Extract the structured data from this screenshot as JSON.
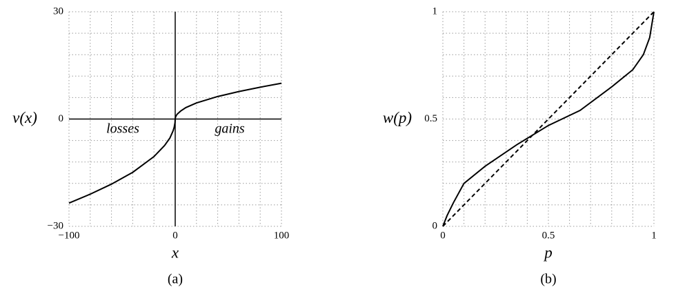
{
  "chart_data": [
    {
      "type": "line",
      "caption": "(a)",
      "xlabel": "x",
      "ylabel": "v(x)",
      "annotations": [
        "losses",
        "gains"
      ],
      "xlim": [
        -100,
        100
      ],
      "ylim": [
        -30,
        30
      ],
      "xticks": [
        {
          "value": -100,
          "label": "−100"
        },
        0,
        100
      ],
      "yticks": [
        {
          "value": -30,
          "label": "−30"
        },
        0,
        30
      ],
      "xgrid": [
        -100,
        -80,
        -60,
        -40,
        -20,
        0,
        20,
        40,
        60,
        80,
        100
      ],
      "ygrid": [
        -30,
        -24,
        -18,
        -12,
        -6,
        0,
        6,
        12,
        18,
        24,
        30
      ],
      "zero_axes": true,
      "x": [
        -100,
        -80,
        -60,
        -40,
        -20,
        -10,
        -5,
        -2,
        -1,
        -0.2,
        0,
        0.2,
        1,
        2,
        5,
        10,
        20,
        40,
        60,
        80,
        100
      ],
      "series": [
        {
          "color": "#000000",
          "dash": "solid",
          "values": [
            -23.5,
            -21.0,
            -18.2,
            -14.9,
            -10.5,
            -7.4,
            -5.3,
            -3.3,
            -2.35,
            -1.05,
            0,
            0.45,
            1.0,
            1.4,
            2.2,
            3.2,
            4.5,
            6.3,
            7.7,
            8.9,
            10.0
          ]
        }
      ]
    },
    {
      "type": "line",
      "caption": "(b)",
      "xlabel": "p",
      "ylabel": "w(p)",
      "xlim": [
        0,
        1
      ],
      "ylim": [
        0,
        1
      ],
      "xticks": [
        0,
        0.5,
        1
      ],
      "yticks": [
        0,
        0.5,
        1
      ],
      "xgrid": [
        0,
        0.1,
        0.2,
        0.3,
        0.4,
        0.5,
        0.6,
        0.7,
        0.8,
        0.9,
        1
      ],
      "ygrid": [
        0,
        0.1,
        0.2,
        0.3,
        0.4,
        0.5,
        0.6,
        0.7,
        0.8,
        0.9,
        1
      ],
      "zero_axes": false,
      "x": [
        0,
        0.02,
        0.05,
        0.1,
        0.2,
        0.35,
        0.5,
        0.65,
        0.8,
        0.9,
        0.95,
        0.98,
        1
      ],
      "series": [
        {
          "color": "#000000",
          "dash": "solid",
          "values": [
            0,
            0.05,
            0.11,
            0.2,
            0.28,
            0.38,
            0.47,
            0.54,
            0.65,
            0.73,
            0.8,
            0.88,
            1
          ]
        },
        {
          "color": "#000000",
          "dash": "dashed",
          "values": [
            0,
            0.02,
            0.05,
            0.1,
            0.2,
            0.35,
            0.5,
            0.65,
            0.8,
            0.9,
            0.95,
            0.98,
            1
          ]
        }
      ]
    }
  ]
}
